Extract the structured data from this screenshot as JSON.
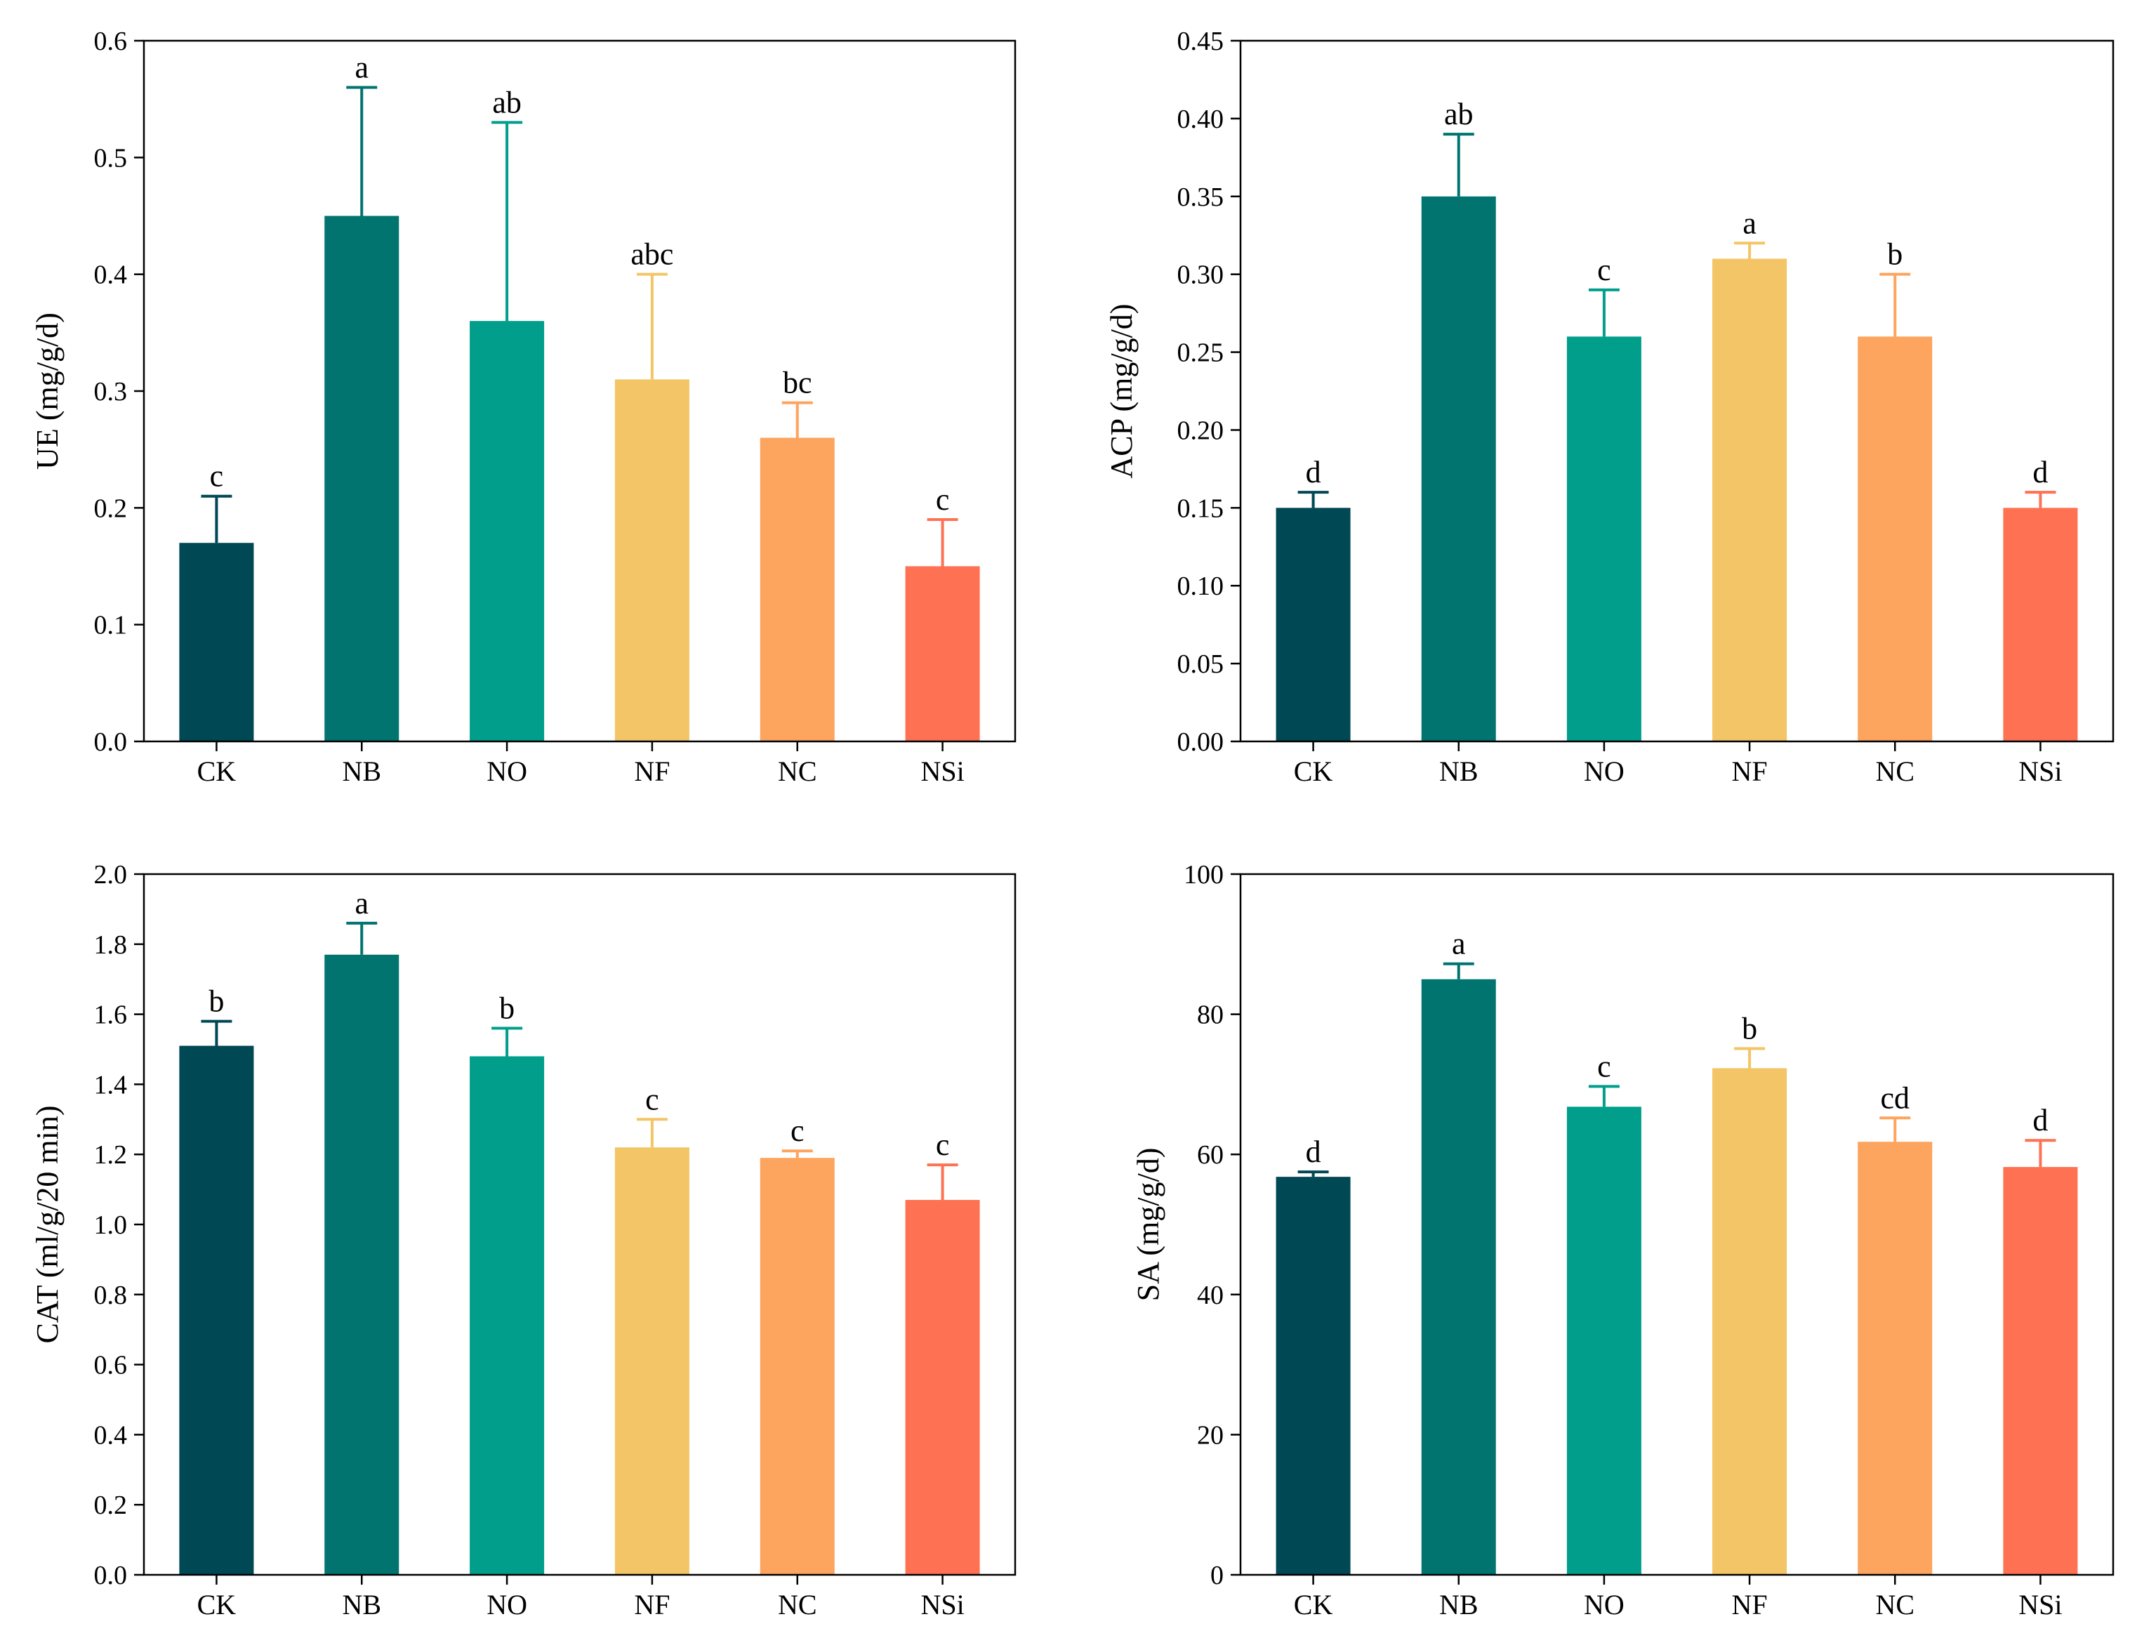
{
  "colors": {
    "CK": "#004854",
    "NB": "#017470",
    "NO": "#009E8B",
    "NF": "#F3C566",
    "NC": "#FDA45E",
    "NSi": "#FE7152",
    "axis": "#000000"
  },
  "chart_data": [
    {
      "type": "bar",
      "position": "top-left",
      "title": "",
      "xlabel": "",
      "ylabel": "UE (mg/g/d)",
      "ylim": [
        0,
        0.6
      ],
      "yticks": [
        0.0,
        0.1,
        0.2,
        0.3,
        0.4,
        0.5,
        0.6
      ],
      "ytick_labels": [
        "0.0",
        "0.1",
        "0.2",
        "0.3",
        "0.4",
        "0.5",
        "0.6"
      ],
      "categories": [
        "CK",
        "NB",
        "NO",
        "NF",
        "NC",
        "NSi"
      ],
      "values": [
        0.17,
        0.45,
        0.36,
        0.31,
        0.26,
        0.15
      ],
      "errors": [
        0.04,
        0.11,
        0.17,
        0.09,
        0.03,
        0.04
      ],
      "significance": [
        "c",
        "a",
        "ab",
        "abc",
        "bc",
        "c"
      ]
    },
    {
      "type": "bar",
      "position": "top-right",
      "title": "",
      "xlabel": "",
      "ylabel": "ACP (mg/g/d)",
      "ylim": [
        0,
        0.45
      ],
      "yticks": [
        0.0,
        0.05,
        0.1,
        0.15,
        0.2,
        0.25,
        0.3,
        0.35,
        0.4,
        0.45
      ],
      "ytick_labels": [
        "0.00",
        "0.05",
        "0.10",
        "0.15",
        "0.20",
        "0.25",
        "0.30",
        "0.35",
        "0.40",
        "0.45"
      ],
      "categories": [
        "CK",
        "NB",
        "NO",
        "NF",
        "NC",
        "NSi"
      ],
      "values": [
        0.15,
        0.35,
        0.26,
        0.31,
        0.26,
        0.15
      ],
      "errors": [
        0.01,
        0.04,
        0.03,
        0.01,
        0.04,
        0.01
      ],
      "significance": [
        "d",
        "ab",
        "c",
        "a",
        "b",
        "d"
      ]
    },
    {
      "type": "bar",
      "position": "bottom-left",
      "title": "",
      "xlabel": "",
      "ylabel": "CAT (ml/g/20 min)",
      "ylim": [
        0,
        2.0
      ],
      "yticks": [
        0.0,
        0.2,
        0.4,
        0.6,
        0.8,
        1.0,
        1.2,
        1.4,
        1.6,
        1.8,
        2.0
      ],
      "ytick_labels": [
        "0.0",
        "0.2",
        "0.4",
        "0.6",
        "0.8",
        "1.0",
        "1.2",
        "1.4",
        "1.6",
        "1.8",
        "2.0"
      ],
      "categories": [
        "CK",
        "NB",
        "NO",
        "NF",
        "NC",
        "NSi"
      ],
      "values": [
        1.51,
        1.77,
        1.48,
        1.22,
        1.19,
        1.07
      ],
      "errors": [
        0.07,
        0.09,
        0.08,
        0.08,
        0.02,
        0.1
      ],
      "significance": [
        "b",
        "a",
        "b",
        "c",
        "c",
        "c"
      ]
    },
    {
      "type": "bar",
      "position": "bottom-right",
      "title": "",
      "xlabel": "",
      "ylabel": "SA (mg/g/d)",
      "ylim": [
        0,
        100
      ],
      "yticks": [
        0,
        20,
        40,
        60,
        80,
        100
      ],
      "ytick_labels": [
        "0",
        "20",
        "40",
        "60",
        "80",
        "100"
      ],
      "categories": [
        "CK",
        "NB",
        "NO",
        "NF",
        "NC",
        "NSi"
      ],
      "values": [
        56.8,
        85,
        66.8,
        72.3,
        61.8,
        58.2
      ],
      "errors": [
        0.7,
        2.2,
        2.9,
        2.8,
        3.4,
        3.8
      ],
      "significance": [
        "d",
        "a",
        "c",
        "b",
        "cd",
        "d"
      ]
    }
  ]
}
